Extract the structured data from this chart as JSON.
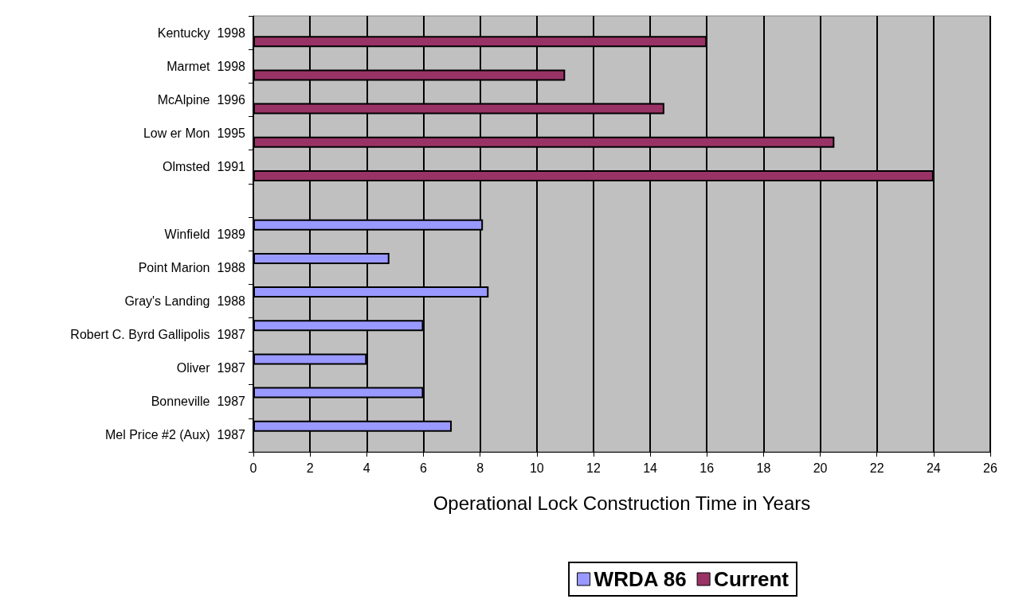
{
  "chart_data": {
    "type": "bar",
    "orientation": "horizontal",
    "xlabel": "Operational Lock Construction Time in Years",
    "categories": [
      "Kentucky  1998",
      "Marmet  1998",
      "McAlpine  1996",
      "Low er Mon  1995",
      "Olmsted  1991",
      null,
      "Winfield  1989",
      "Point Marion  1988",
      "Gray's Landing  1988",
      "Robert C. Byrd Gallipolis  1987",
      "Oliver  1987",
      "Bonneville  1987",
      "Mel Price #2 (Aux)  1987"
    ],
    "series": [
      {
        "name": "WRDA 86",
        "color": "#9999ff",
        "values": [
          null,
          null,
          null,
          null,
          null,
          null,
          8.1,
          4.8,
          8.3,
          6,
          4,
          6,
          7
        ]
      },
      {
        "name": "Current",
        "color": "#993366",
        "values": [
          16,
          11,
          14.5,
          20.5,
          24,
          null,
          null,
          null,
          null,
          null,
          null,
          null,
          null
        ]
      }
    ],
    "xlim": [
      0,
      26
    ],
    "xticks": [
      0,
      2,
      4,
      6,
      8,
      10,
      12,
      14,
      16,
      18,
      20,
      22,
      24,
      26
    ],
    "grid": "x",
    "legend": "bottom"
  }
}
